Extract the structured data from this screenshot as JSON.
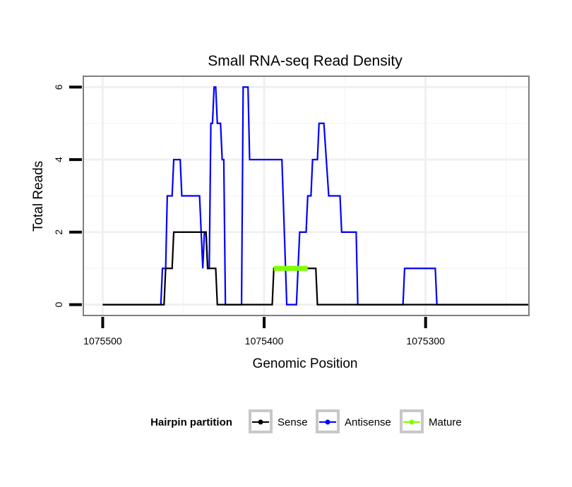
{
  "chart_data": {
    "type": "line",
    "title": "Small RNA-seq Read Density",
    "xlabel": "Genomic Position",
    "ylabel": "Total Reads",
    "xlim": [
      1075512,
      1075236
    ],
    "x_reversed": true,
    "ylim": [
      -0.3,
      6.3
    ],
    "x_ticks": [
      1075500,
      1075400,
      1075300
    ],
    "x_tick_labels": [
      "1075500",
      "1075400",
      "1075300"
    ],
    "y_ticks": [
      0,
      2,
      4,
      6
    ],
    "y_tick_labels": [
      "0",
      "2",
      "4",
      "6"
    ],
    "grid": true,
    "legend_position": "bottom",
    "legend": {
      "title": "Hairpin partition",
      "items": [
        {
          "key": "sense",
          "label": "Sense",
          "color": "#000000"
        },
        {
          "key": "antisense",
          "label": "Antisense",
          "color": "#0000ff"
        },
        {
          "key": "mature",
          "label": "Mature",
          "color": "#7fff00"
        }
      ]
    },
    "series": [
      {
        "name": "Antisense",
        "color": "#0000ff",
        "x": [
          1075500,
          1075464,
          1075463,
          1075461,
          1075460,
          1075457,
          1075456,
          1075452,
          1075451,
          1075440,
          1075439,
          1075438,
          1075437,
          1075436,
          1075435,
          1075434,
          1075433,
          1075432,
          1075431,
          1075430,
          1075429,
          1075427,
          1075426,
          1075425,
          1075424,
          1075414,
          1075413,
          1075410,
          1075409,
          1075389,
          1075386,
          1075380,
          1075379,
          1075378,
          1075377,
          1075376,
          1075375,
          1075374,
          1075373,
          1075372,
          1075371,
          1075370,
          1075369,
          1075367,
          1075366,
          1075365,
          1075364,
          1075363,
          1075360,
          1075359,
          1075354,
          1075353,
          1075352,
          1075351,
          1075350,
          1075349,
          1075343,
          1075342,
          1075337,
          1075336,
          1075335,
          1075331,
          1075330,
          1075316,
          1075314,
          1075313,
          1075312,
          1075294,
          1075293,
          1075236
        ],
        "y": [
          0,
          0,
          1,
          1,
          3,
          3,
          4,
          4,
          3,
          3,
          2,
          1,
          2,
          2,
          1,
          1,
          5,
          5,
          6,
          6,
          5,
          5,
          4,
          4,
          0,
          0,
          6,
          6,
          4,
          4,
          0,
          0,
          1,
          2,
          2,
          2,
          2,
          2,
          3,
          3,
          3,
          4,
          4,
          4,
          5,
          5,
          5,
          5,
          3,
          3,
          3,
          3,
          2,
          2,
          2,
          2,
          2,
          0,
          0,
          0,
          0,
          0,
          0,
          0,
          0,
          1,
          1,
          1,
          0,
          0
        ]
      },
      {
        "name": "Sense",
        "color": "#000000",
        "x": [
          1075500,
          1075462,
          1075461,
          1075457,
          1075456,
          1075450,
          1075449,
          1075436,
          1075435,
          1075430,
          1075429,
          1075428,
          1075427,
          1075395,
          1075394,
          1075368,
          1075367,
          1075300,
          1075236
        ],
        "y": [
          0,
          0,
          1,
          1,
          2,
          2,
          2,
          2,
          1,
          1,
          0,
          0,
          0,
          0,
          1,
          1,
          0,
          0,
          0
        ]
      },
      {
        "name": "Mature",
        "color": "#7fff00",
        "x": [
          1075394,
          1075373
        ],
        "y": [
          1,
          1
        ]
      }
    ]
  }
}
